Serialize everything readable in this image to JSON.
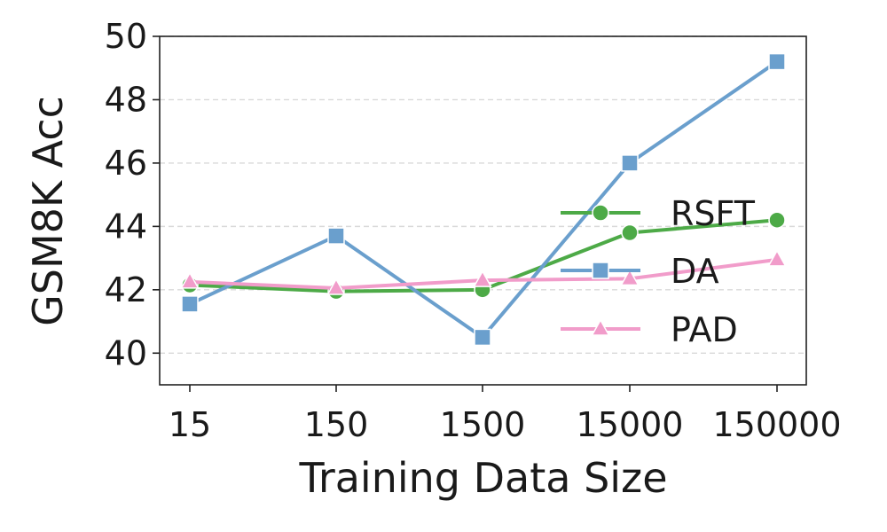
{
  "chart_data": {
    "type": "line",
    "title": "",
    "xlabel": "Training Data Size",
    "ylabel": "GSM8K Acc",
    "categories": [
      "15",
      "150",
      "1500",
      "15000",
      "150000"
    ],
    "ylim": [
      39,
      50
    ],
    "yticks": [
      40,
      42,
      44,
      46,
      48,
      50
    ],
    "grid": "horizontal dashed",
    "legend": "center-right",
    "series": [
      {
        "name": "RSFT",
        "color": "#4daa47",
        "marker": "circle",
        "values": [
          42.15,
          41.95,
          42.0,
          43.8,
          44.2
        ]
      },
      {
        "name": "DA",
        "color": "#6a9fcd",
        "marker": "square",
        "values": [
          41.55,
          43.7,
          40.5,
          46.0,
          49.2
        ]
      },
      {
        "name": "PAD",
        "color": "#f19cca",
        "marker": "triangle",
        "values": [
          42.25,
          42.05,
          42.3,
          42.35,
          42.95
        ]
      }
    ]
  }
}
